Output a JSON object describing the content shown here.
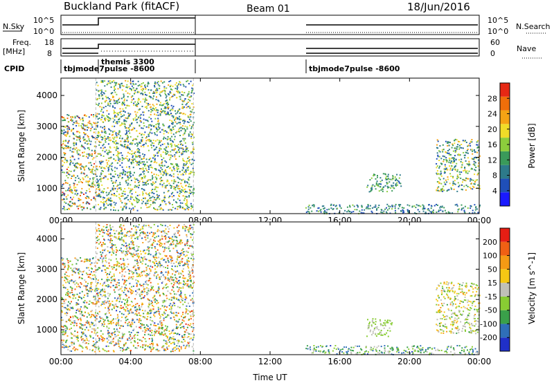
{
  "header": {
    "title": "Buckland Park (fitACF)",
    "beam": "Beam 01",
    "date": "18/Jun/2016"
  },
  "top_panels": {
    "nsky_label": "N.Sky",
    "nsky_ticks": [
      "10^5",
      "10^0"
    ],
    "nsearch_label": "N.Search",
    "nsearch_ticks": [
      "10^5",
      "10^0"
    ],
    "freq_label": "Freq.",
    "freq_unit": "[MHz]",
    "freq_ticks": [
      "18",
      "8"
    ],
    "nave_label": "Nave",
    "nave_ticks": [
      "60",
      "0"
    ],
    "cpid_label": "CPID",
    "cpid_entries": [
      "tbjmode7pulse -8600",
      "themis 3300",
      "tbjmode7pulse -8600"
    ]
  },
  "chart_data": [
    {
      "type": "heatmap",
      "title": "",
      "xlabel": "",
      "ylabel": "Slant Range [km]",
      "x_ticks": [
        "00:00",
        "04:00",
        "08:00",
        "12:00",
        "16:00",
        "20:00",
        "00:00"
      ],
      "xlim": [
        0,
        24
      ],
      "y_ticks": [
        "1000",
        "2000",
        "3000",
        "4000"
      ],
      "ylim": [
        180,
        4560
      ],
      "colorbar": {
        "label": "Power [dB]",
        "ticks": [
          "4",
          "8",
          "12",
          "16",
          "20",
          "24",
          "28"
        ],
        "range": [
          0,
          30
        ],
        "colors": [
          "#1a1aff",
          "#1f4fb8",
          "#2d7a8a",
          "#3a9a5a",
          "#8ccd3c",
          "#f0dc28",
          "#f5a314",
          "#f06e0a",
          "#e62814"
        ]
      },
      "echo_regions": [
        {
          "t_start": 0.0,
          "t_end": 2.0,
          "r_min": 300,
          "r_max": 3400,
          "value_range": [
            4,
            28
          ]
        },
        {
          "t_start": 2.0,
          "t_end": 7.6,
          "r_min": 300,
          "r_max": 4500,
          "value_range": [
            4,
            22
          ]
        },
        {
          "t_start": 14.0,
          "t_end": 24.0,
          "r_min": 200,
          "r_max": 500,
          "value_range": [
            4,
            14
          ]
        },
        {
          "t_start": 17.5,
          "t_end": 19.5,
          "r_min": 900,
          "r_max": 1500,
          "value_range": [
            6,
            16
          ]
        },
        {
          "t_start": 21.5,
          "t_end": 24.0,
          "r_min": 900,
          "r_max": 2600,
          "value_range": [
            4,
            22
          ]
        }
      ]
    },
    {
      "type": "heatmap",
      "title": "",
      "xlabel": "Time UT",
      "ylabel": "Slant Range [km]",
      "x_ticks": [
        "00:00",
        "04:00",
        "08:00",
        "12:00",
        "16:00",
        "20:00",
        "00:00"
      ],
      "xlim": [
        0,
        24
      ],
      "y_ticks": [
        "1000",
        "2000",
        "3000",
        "4000"
      ],
      "ylim": [
        180,
        4560
      ],
      "colorbar": {
        "label": "Velocity [m s^-1]",
        "ticks": [
          "200",
          "100",
          "50",
          "15",
          "-15",
          "-50",
          "-100",
          "-200"
        ],
        "range": [
          -250,
          250
        ],
        "colors": [
          "#2030c8",
          "#2f6fb8",
          "#3aa04a",
          "#88cc33",
          "#c0c0b8",
          "#f5c814",
          "#f59a14",
          "#f06014",
          "#e61e14"
        ]
      },
      "echo_regions": [
        {
          "t_start": 0.0,
          "t_end": 2.0,
          "r_min": 300,
          "r_max": 3400,
          "value_range": [
            -200,
            200
          ]
        },
        {
          "t_start": 2.0,
          "t_end": 7.6,
          "r_min": 300,
          "r_max": 4500,
          "value_range": [
            -200,
            200
          ]
        },
        {
          "t_start": 14.0,
          "t_end": 24.0,
          "r_min": 200,
          "r_max": 500,
          "value_range": [
            -200,
            15
          ]
        },
        {
          "t_start": 17.5,
          "t_end": 19.0,
          "r_min": 800,
          "r_max": 1400,
          "value_range": [
            -50,
            -15
          ]
        },
        {
          "t_start": 21.5,
          "t_end": 24.0,
          "r_min": 900,
          "r_max": 2600,
          "value_range": [
            -100,
            100
          ]
        }
      ]
    }
  ],
  "colors": {
    "axis": "#000000",
    "gap_line": "#bbbbbb"
  }
}
